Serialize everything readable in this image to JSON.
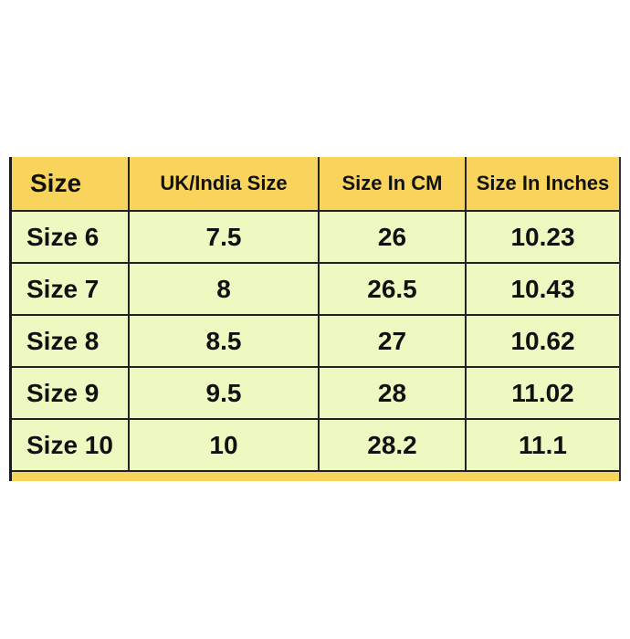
{
  "table": {
    "headers": [
      "Size",
      "UK/India Size",
      "Size In CM",
      "Size In Inches"
    ],
    "rows": [
      [
        "Size 6",
        "7.5",
        "26",
        "10.23"
      ],
      [
        "Size 7",
        "8",
        "26.5",
        "10.43"
      ],
      [
        "Size 8",
        "8.5",
        "27",
        "10.62"
      ],
      [
        "Size 9",
        "9.5",
        "28",
        "11.02"
      ],
      [
        "Size 10",
        "10",
        "28.2",
        "11.1"
      ]
    ]
  },
  "colors": {
    "header": "#f8d45c",
    "body": "#edf9c0"
  }
}
